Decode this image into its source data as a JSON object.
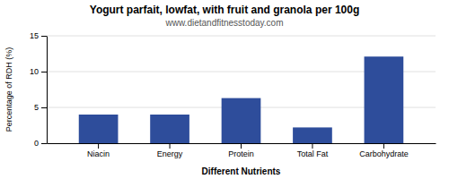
{
  "chart_data": {
    "type": "bar",
    "title": "Yogurt parfait, lowfat, with fruit and granola per 100g",
    "subtitle": "www.dietandfitnesstoday.com",
    "categories": [
      "Niacin",
      "Energy",
      "Protein",
      "Total Fat",
      "Carbohydrate"
    ],
    "values": [
      4.0,
      4.0,
      6.3,
      2.2,
      12.1
    ],
    "color": "#2e4d9b",
    "xlabel": "Different Nutrients",
    "ylabel": "Percentage of RDH (%)",
    "ylim": [
      0,
      15
    ],
    "yticks": [
      0,
      5,
      10,
      15
    ],
    "grid": true
  }
}
